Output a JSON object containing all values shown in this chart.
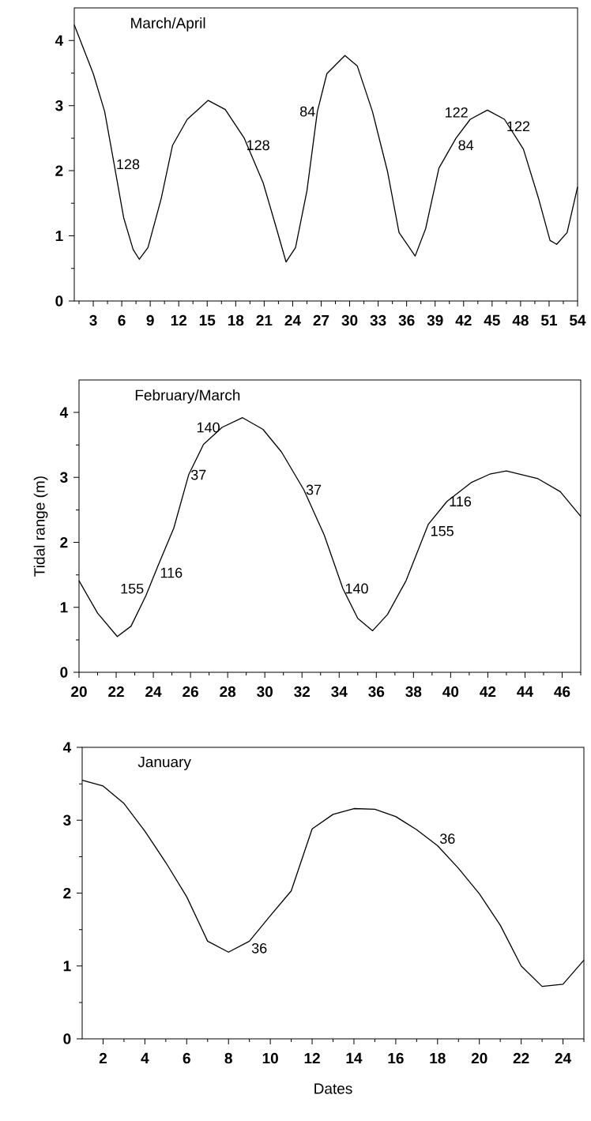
{
  "chart_data": [
    {
      "type": "line",
      "title": "March/April",
      "x": [
        1,
        3,
        4.2,
        5.2,
        6.2,
        7.2,
        7.85,
        8.76,
        10.15,
        11.35,
        12.9,
        15.1,
        16.9,
        18.9,
        20.9,
        22.3,
        23.3,
        24.3,
        25.5,
        26.6,
        27.6,
        29.5,
        30.8,
        32.4,
        34.0,
        35.2,
        36.9,
        38.0,
        39.4,
        41.2,
        42.7,
        44.5,
        46.3,
        48.3,
        49.9,
        51.1,
        51.8,
        52.9,
        54
      ],
      "values": [
        4.24,
        3.49,
        2.91,
        2.1,
        1.28,
        0.79,
        0.64,
        0.82,
        1.57,
        2.39,
        2.79,
        3.08,
        2.94,
        2.5,
        1.81,
        1.11,
        0.6,
        0.82,
        1.69,
        2.91,
        3.49,
        3.77,
        3.61,
        2.91,
        1.98,
        1.05,
        0.69,
        1.11,
        2.04,
        2.5,
        2.79,
        2.93,
        2.79,
        2.33,
        1.57,
        0.93,
        0.87,
        1.05,
        1.75
      ],
      "color": "#000000",
      "xlim": [
        1,
        54
      ],
      "ylim": [
        0,
        4.5
      ],
      "xticks": [
        {
          "value": 1.5,
          "label": null
        },
        3,
        {
          "value": 4.5,
          "label": null
        },
        6,
        {
          "value": 7.5,
          "label": null
        },
        9,
        {
          "value": 10.5,
          "label": null
        },
        12,
        {
          "value": 13.5,
          "label": null
        },
        15,
        {
          "value": 16.5,
          "label": null
        },
        18,
        {
          "value": 19.5,
          "label": null
        },
        21,
        {
          "value": 22.5,
          "label": null
        },
        24,
        {
          "value": 25.5,
          "label": null
        },
        27,
        {
          "value": 28.5,
          "label": null
        },
        30,
        {
          "value": 31.5,
          "label": null
        },
        33,
        {
          "value": 34.5,
          "label": null
        },
        36,
        {
          "value": 37.5,
          "label": null
        },
        39,
        {
          "value": 40.5,
          "label": null
        },
        42,
        {
          "value": 43.5,
          "label": null
        },
        45,
        {
          "value": 46.5,
          "label": null
        },
        48,
        {
          "value": 49.5,
          "label": null
        },
        51,
        {
          "value": 52.5,
          "label": null
        },
        54
      ],
      "yticks": [
        0,
        {
          "value": 0.5,
          "label": null
        },
        1,
        {
          "value": 1.5,
          "label": null
        },
        2,
        {
          "value": 2.5,
          "label": null
        },
        3,
        {
          "value": 3.5,
          "label": null
        },
        4
      ],
      "annotations": [
        {
          "text": "128",
          "x": 5.2,
          "y": 2.1
        },
        {
          "text": "128",
          "x": 18.9,
          "y": 2.5
        },
        {
          "text": "84",
          "x": 26.6,
          "y": 2.91
        },
        {
          "text": "122",
          "x": 42.7,
          "y": 2.79
        },
        {
          "text": "84",
          "x": 41.2,
          "y": 2.5
        },
        {
          "text": "122",
          "x": 46.3,
          "y": 2.79
        }
      ]
    },
    {
      "type": "line",
      "title": "February/March",
      "ylabel": "Tidal range (m)",
      "x": [
        20,
        21.0,
        22.06,
        22.8,
        23.6,
        24.25,
        25.1,
        25.9,
        26.7,
        27.7,
        28.8,
        29.9,
        30.9,
        32.1,
        33.2,
        34.2,
        35.0,
        35.8,
        36.6,
        37.6,
        38.8,
        39.8,
        41.1,
        42.1,
        43.0,
        44.7,
        45.9,
        47
      ],
      "values": [
        1.41,
        0.91,
        0.55,
        0.71,
        1.18,
        1.64,
        2.22,
        3.04,
        3.51,
        3.77,
        3.92,
        3.74,
        3.39,
        2.81,
        2.11,
        1.29,
        0.83,
        0.64,
        0.89,
        1.41,
        2.28,
        2.63,
        2.92,
        3.05,
        3.1,
        2.98,
        2.78,
        2.4
      ],
      "color": "#000000",
      "xlim": [
        20,
        47
      ],
      "ylim": [
        0,
        4.5
      ],
      "xticks": [
        20,
        {
          "value": 21,
          "label": null
        },
        22,
        {
          "value": 23,
          "label": null
        },
        24,
        {
          "value": 25,
          "label": null
        },
        26,
        {
          "value": 27,
          "label": null
        },
        28,
        {
          "value": 29,
          "label": null
        },
        30,
        {
          "value": 31,
          "label": null
        },
        32,
        {
          "value": 33,
          "label": null
        },
        34,
        {
          "value": 35,
          "label": null
        },
        36,
        {
          "value": 37,
          "label": null
        },
        38,
        {
          "value": 39,
          "label": null
        },
        40,
        {
          "value": 41,
          "label": null
        },
        42,
        {
          "value": 43,
          "label": null
        },
        44,
        {
          "value": 45,
          "label": null
        },
        46,
        {
          "value": 47,
          "label": null
        }
      ],
      "yticks": [
        0,
        {
          "value": 0.5,
          "label": null
        },
        1,
        {
          "value": 1.5,
          "label": null
        },
        2,
        {
          "value": 2.5,
          "label": null
        },
        3,
        {
          "value": 3.5,
          "label": null
        },
        4
      ],
      "annotations": [
        {
          "text": "140",
          "x": 27.7,
          "y": 3.77
        },
        {
          "text": "37",
          "x": 25.9,
          "y": 3.04
        },
        {
          "text": "155",
          "x": 23.6,
          "y": 1.18
        },
        {
          "text": "116",
          "x": 24.25,
          "y": 1.64
        },
        {
          "text": "37",
          "x": 32.1,
          "y": 2.81
        },
        {
          "text": "140",
          "x": 34.2,
          "y": 1.29
        },
        {
          "text": "155",
          "x": 38.8,
          "y": 2.28
        },
        {
          "text": "116",
          "x": 39.8,
          "y": 2.63
        }
      ]
    },
    {
      "type": "line",
      "title": "January",
      "xlabel": "Dates",
      "x": [
        1,
        2,
        3,
        4,
        5,
        6,
        7,
        8,
        9,
        10,
        11,
        12,
        13,
        14,
        15,
        16,
        17,
        18,
        19,
        20,
        21,
        22,
        23,
        24,
        25
      ],
      "values": [
        3.55,
        3.47,
        3.23,
        2.85,
        2.42,
        1.95,
        1.34,
        1.19,
        1.34,
        1.69,
        2.03,
        2.88,
        3.08,
        3.16,
        3.15,
        3.05,
        2.87,
        2.65,
        2.34,
        1.99,
        1.56,
        1.0,
        0.72,
        0.75,
        1.08
      ],
      "color": "#000000",
      "xlim": [
        1,
        25
      ],
      "ylim": [
        0,
        4
      ],
      "xticks": [
        2,
        {
          "value": 3,
          "label": null
        },
        4,
        {
          "value": 5,
          "label": null
        },
        6,
        {
          "value": 7,
          "label": null
        },
        8,
        {
          "value": 9,
          "label": null
        },
        10,
        {
          "value": 11,
          "label": null
        },
        12,
        {
          "value": 13,
          "label": null
        },
        14,
        {
          "value": 15,
          "label": null
        },
        16,
        {
          "value": 17,
          "label": null
        },
        18,
        {
          "value": 19,
          "label": null
        },
        20,
        {
          "value": 21,
          "label": null
        },
        22,
        {
          "value": 23,
          "label": null
        },
        24,
        {
          "value": 25,
          "label": null
        }
      ],
      "yticks": [
        0,
        {
          "value": 0.5,
          "label": null
        },
        1,
        {
          "value": 1.5,
          "label": null
        },
        2,
        {
          "value": 2.5,
          "label": null
        },
        3,
        {
          "value": 3.5,
          "label": null
        },
        4
      ],
      "annotations": [
        {
          "text": "36",
          "x": 9,
          "y": 1.34
        },
        {
          "text": "36",
          "x": 18,
          "y": 2.65
        }
      ]
    }
  ]
}
